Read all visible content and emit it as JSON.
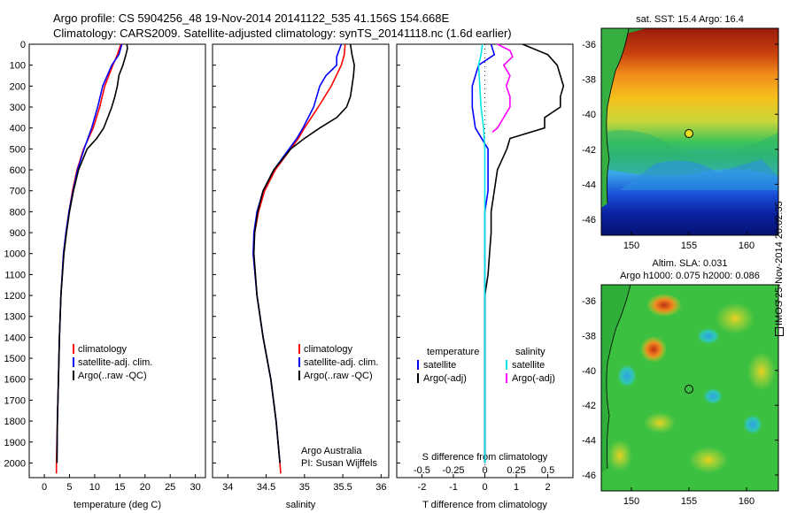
{
  "header": {
    "line1": "Argo profile: CS 5904256_48 19-Nov-2014 20141122_535 41.156S 154.668E",
    "line2": "Climatology: CARS2009. Satellite-adjusted climatology: synTS_20141118.nc (1.6d earlier)"
  },
  "chart_data": [
    {
      "type": "line",
      "id": "temperature",
      "xlabel": "temperature (deg C)",
      "ylabel": "",
      "xlim": [
        -3,
        32
      ],
      "ylim": [
        2070,
        0
      ],
      "xticks": [
        0,
        5,
        10,
        15,
        20,
        25,
        30
      ],
      "yticks": [
        0,
        100,
        200,
        300,
        400,
        500,
        600,
        700,
        800,
        900,
        1000,
        1100,
        1200,
        1300,
        1400,
        1500,
        1600,
        1700,
        1800,
        1900,
        2000
      ],
      "legend": [
        {
          "label": "climatology",
          "color": "#ff0000"
        },
        {
          "label": "satellite-adj. clim.",
          "color": "#0000ff"
        },
        {
          "label": "Argo(..raw -QC)",
          "color": "#000000"
        }
      ],
      "series": [
        {
          "name": "climatology",
          "color": "#ff0000",
          "depth": [
            0,
            50,
            100,
            200,
            300,
            400,
            500,
            600,
            700,
            800,
            900,
            1000,
            1200,
            1400,
            1600,
            1800,
            2000,
            2050
          ],
          "values": [
            15.2,
            14.5,
            13.6,
            12.0,
            11.0,
            9.7,
            7.8,
            6.5,
            5.6,
            4.9,
            4.3,
            3.8,
            3.3,
            3.0,
            2.8,
            2.6,
            2.4,
            2.4
          ]
        },
        {
          "name": "satellite-adj. clim.",
          "color": "#0000ff",
          "depth": [
            0,
            50,
            100,
            200,
            300,
            400,
            500,
            600,
            700,
            800,
            900,
            1000,
            1200,
            1400,
            1600,
            1800,
            2000
          ],
          "values": [
            15.4,
            14.8,
            13.4,
            11.6,
            10.6,
            9.4,
            7.9,
            6.6,
            5.7,
            4.9,
            4.3,
            3.8,
            3.3,
            3.0,
            2.8,
            2.6,
            2.5
          ]
        },
        {
          "name": "Argo(..raw -QC)",
          "color": "#000000",
          "depth": [
            0,
            20,
            50,
            100,
            150,
            200,
            250,
            300,
            350,
            400,
            450,
            500,
            600,
            700,
            800,
            900,
            1000,
            1200,
            1400,
            1600,
            1800,
            2000
          ],
          "values": [
            16.4,
            16.5,
            16.2,
            15.6,
            14.8,
            14.5,
            14.0,
            13.4,
            12.6,
            11.8,
            10.4,
            8.5,
            6.8,
            5.8,
            5.0,
            4.4,
            3.9,
            3.3,
            3.0,
            2.8,
            2.6,
            2.5
          ]
        }
      ]
    },
    {
      "type": "line",
      "id": "salinity",
      "xlabel": "salinity",
      "xlim": [
        33.8,
        36.1
      ],
      "ylim": [
        2070,
        0
      ],
      "xticks": [
        34,
        34.5,
        35,
        35.5,
        36
      ],
      "legend": [
        {
          "label": "climatology",
          "color": "#ff0000"
        },
        {
          "label": "satellite-adj. clim.",
          "color": "#0000ff"
        },
        {
          "label": "Argo(..raw -QC)",
          "color": "#000000"
        }
      ],
      "annotation": [
        "Argo Australia",
        "PI: Susan Wijffels"
      ],
      "series": [
        {
          "name": "climatology",
          "color": "#ff0000",
          "depth": [
            0,
            50,
            100,
            200,
            300,
            400,
            450,
            500,
            600,
            700,
            800,
            900,
            1000,
            1200,
            1400,
            1600,
            1800,
            2000,
            2050
          ],
          "values": [
            35.53,
            35.52,
            35.48,
            35.35,
            35.18,
            35.0,
            34.92,
            34.82,
            34.62,
            34.48,
            34.4,
            34.35,
            34.33,
            34.38,
            34.46,
            34.56,
            34.63,
            34.68,
            34.69
          ]
        },
        {
          "name": "satellite-adj. clim.",
          "color": "#0000ff",
          "depth": [
            0,
            30,
            60,
            100,
            150,
            200,
            300,
            400,
            450,
            500,
            600,
            700,
            800,
            900,
            1000,
            1200,
            1400,
            1600,
            1800,
            2000
          ],
          "values": [
            35.48,
            35.45,
            35.42,
            35.42,
            35.28,
            35.2,
            35.12,
            34.98,
            34.9,
            34.8,
            34.6,
            34.46,
            34.38,
            34.34,
            34.33,
            34.38,
            34.46,
            34.56,
            34.63,
            34.68
          ]
        },
        {
          "name": "Argo(..raw -QC)",
          "color": "#000000",
          "depth": [
            0,
            50,
            100,
            150,
            200,
            250,
            300,
            350,
            400,
            450,
            500,
            600,
            700,
            800,
            900,
            1000,
            1200,
            1400,
            1600,
            1800,
            2000
          ],
          "values": [
            35.6,
            35.62,
            35.65,
            35.64,
            35.62,
            35.6,
            35.55,
            35.42,
            35.2,
            35.0,
            34.82,
            34.6,
            34.46,
            34.39,
            34.35,
            34.34,
            34.38,
            34.46,
            34.56,
            34.63,
            34.68
          ]
        }
      ]
    },
    {
      "type": "line",
      "id": "difference",
      "xlabel": "T difference from climatology",
      "xlabel_top": "S difference from climatology",
      "xlim": [
        -2.8,
        2.8
      ],
      "ylim": [
        2070,
        0
      ],
      "xticks": [
        -2,
        -1,
        0,
        1,
        2
      ],
      "xticks_s": [
        -0.5,
        -0.25,
        0,
        0.25,
        0.5
      ],
      "legend": [
        {
          "label": "temperature",
          "color": ""
        },
        {
          "label": "satellite",
          "color": "#0000ff"
        },
        {
          "label": "Argo(-adj)",
          "color": "#000000"
        },
        {
          "label": "salinity",
          "color": ""
        },
        {
          "label": "satellite",
          "color": "#00e5e5"
        },
        {
          "label": "Argo(-adj)",
          "color": "#ff00ff"
        }
      ],
      "series": [
        {
          "name": "T satellite",
          "color": "#0000ff",
          "depth": [
            0,
            50,
            100,
            200,
            300,
            400,
            500,
            600,
            700,
            800,
            1000,
            1200,
            1400,
            1600,
            1800,
            2000
          ],
          "values": [
            0.2,
            0.3,
            -0.2,
            -0.4,
            -0.4,
            -0.3,
            0.1,
            0.1,
            0.1,
            0.0,
            0.0,
            0.0,
            0.0,
            0.0,
            0.0,
            0.0
          ]
        },
        {
          "name": "T Argo",
          "color": "#000000",
          "depth": [
            0,
            50,
            100,
            150,
            200,
            250,
            300,
            350,
            400,
            450,
            500,
            600,
            700,
            800,
            900,
            1000,
            1100,
            1200,
            1400,
            1600,
            1800,
            2000
          ],
          "values": [
            1.2,
            2.0,
            2.3,
            2.4,
            2.5,
            2.4,
            2.4,
            1.9,
            1.9,
            0.8,
            0.7,
            0.4,
            0.3,
            0.2,
            0.2,
            0.15,
            0.1,
            0.0,
            0.0,
            0.0,
            0.0,
            0.0
          ]
        },
        {
          "name": "S satellite",
          "color": "#00e5e5",
          "depth": [
            0,
            50,
            100,
            200,
            300,
            400,
            500,
            600,
            800,
            1000,
            1200,
            1600,
            2000
          ],
          "values": [
            -0.02,
            -0.03,
            -0.05,
            -0.04,
            -0.03,
            -0.01,
            0.0,
            0.0,
            0.0,
            0.0,
            0.0,
            0.0,
            0.0
          ]
        },
        {
          "name": "S Argo",
          "color": "#ff00ff",
          "depth": [
            0,
            30,
            60,
            100,
            150,
            200,
            250,
            300,
            350,
            400,
            420
          ],
          "values": [
            0.1,
            0.2,
            0.22,
            0.15,
            0.2,
            0.17,
            0.2,
            0.2,
            0.15,
            0.1,
            0.06
          ]
        }
      ]
    }
  ],
  "maps": {
    "sst": {
      "title": "sat. SST: 15.4  Argo: 16.4",
      "yticks": [
        "-36",
        "-38",
        "-40",
        "-42",
        "-44",
        "-46"
      ],
      "xticks": [
        "150",
        "155",
        "160"
      ],
      "point": {
        "lon": 154.668,
        "lat": -41.156
      }
    },
    "sla": {
      "title1": "Altim. SLA: 0.031",
      "title2": "Argo h1000: 0.075  h2000: 0.086",
      "yticks": [
        "-36",
        "-38",
        "-40",
        "-42",
        "-44",
        "-46"
      ],
      "xticks": [
        "150",
        "155",
        "160"
      ],
      "point": {
        "lon": 154.668,
        "lat": -41.156
      }
    }
  },
  "footer": {
    "stamp": "IMOS 25-Nov-2014 20:02:35"
  }
}
